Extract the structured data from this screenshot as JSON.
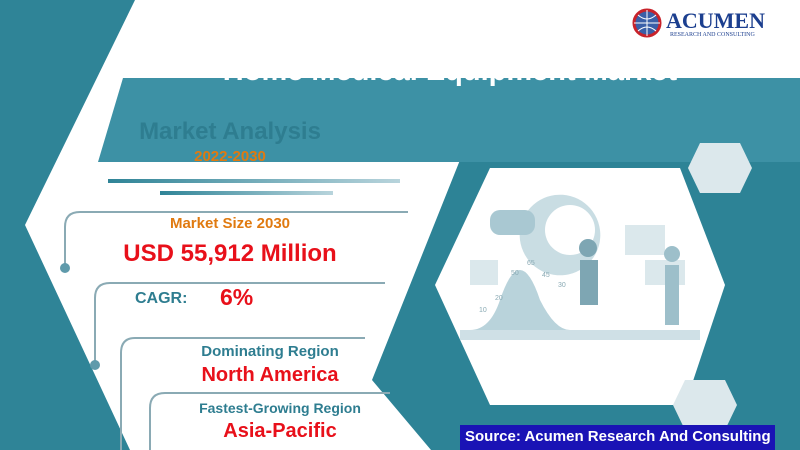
{
  "logo": {
    "name": "ACUMEN",
    "tagline": "RESEARCH AND CONSULTING"
  },
  "title": "Home Medical Equipment Market",
  "analysis": {
    "heading": "Market Analysis",
    "period": "2022-2030"
  },
  "market_size": {
    "label": "Market Size 2030",
    "value": "USD 55,912 Million"
  },
  "cagr": {
    "label": "CAGR:",
    "value": "6%"
  },
  "dominating_region": {
    "label": "Dominating Region",
    "value": "North America"
  },
  "fastest_region": {
    "label": "Fastest-Growing Region",
    "value": "Asia-Pacific"
  },
  "illustration_numbers": [
    "10",
    "20",
    "50",
    "65",
    "45",
    "30"
  ],
  "source": "Source: Acumen Research And Consulting",
  "colors": {
    "teal": "#2f8497",
    "banner": "#3d91a5",
    "orange": "#e07a10",
    "red": "#e8101a",
    "source_bg": "#1a13b5"
  }
}
